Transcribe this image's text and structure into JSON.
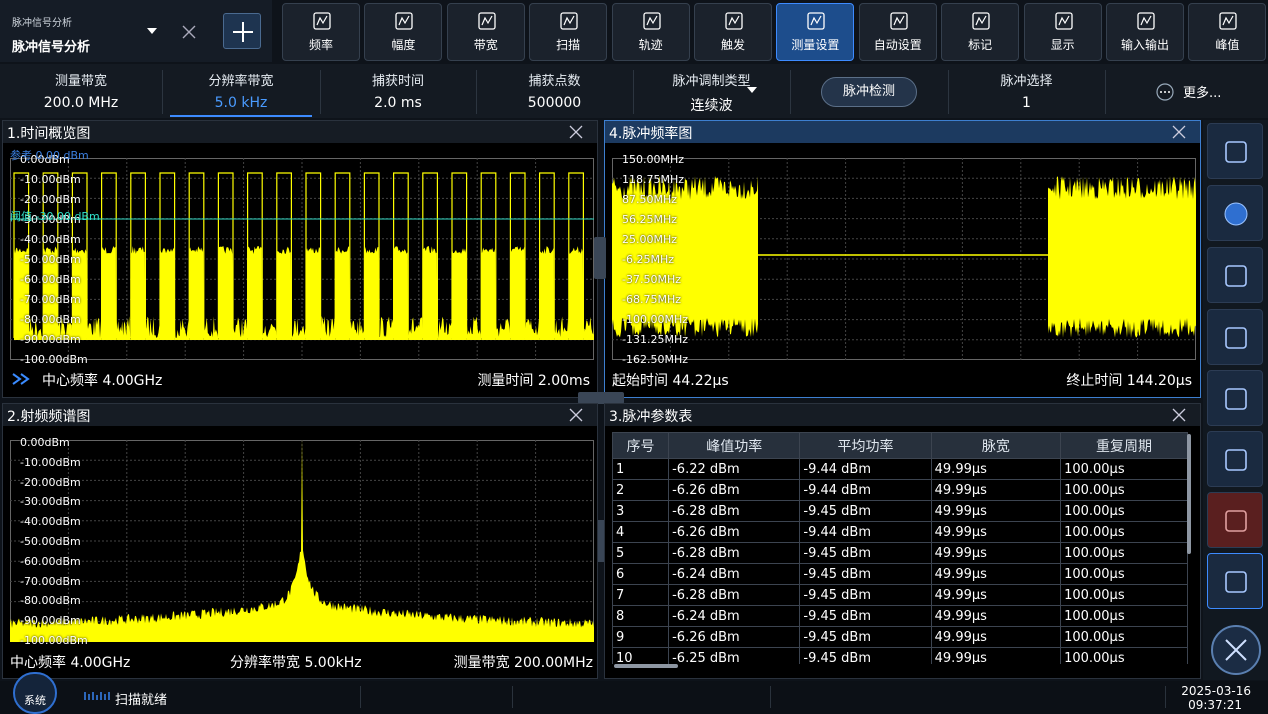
{
  "header": {
    "app_small": "脉冲信号分析",
    "app": "脉冲信号分析"
  },
  "toolbar": {
    "items": [
      "频率",
      "幅度",
      "带宽",
      "扫描",
      "轨迹",
      "触发",
      "测量设置",
      "自动设置",
      "标记",
      "显示",
      "输入输出",
      "峰值"
    ],
    "active_index": 6
  },
  "params": {
    "items": [
      {
        "label": "测量带宽",
        "value": "200.0 MHz"
      },
      {
        "label": "分辨率带宽",
        "value": "5.0 kHz"
      },
      {
        "label": "捕获时间",
        "value": "2.0 ms"
      },
      {
        "label": "捕获点数",
        "value": "500000"
      },
      {
        "label": "脉冲调制类型",
        "value": "连续波"
      },
      {
        "button": "脉冲检测"
      },
      {
        "label": "脉冲选择",
        "value": "1"
      },
      {
        "button": "更多..."
      }
    ],
    "active_index": 1
  },
  "panels": {
    "overview": {
      "title": "1.时间概览图",
      "ref_label": "参考 0.00 dBm",
      "threshold_label": "阈值 -30.00 dBm",
      "y_labels": [
        "0.00dBm",
        "-10.00dBm",
        "-20.00dBm",
        "-30.00dBm",
        "-40.00dBm",
        "-50.00dBm",
        "-60.00dBm",
        "-70.00dBm",
        "-80.00dBm",
        "-90.00dBm",
        "-100.00dBm"
      ],
      "footer_left": "中心频率 4.00GHz",
      "footer_right": "测量时间 2.00ms"
    },
    "frequency": {
      "title": "4.脉冲频率图",
      "y_labels": [
        "150.00MHz",
        "118.75MHz",
        "87.50MHz",
        "56.25MHz",
        "25.00MHz",
        "-6.25MHz",
        "-37.50MHz",
        "-68.75MHz",
        "-100.00MHz",
        "-131.25MHz",
        "-162.50MHz"
      ],
      "footer_left": "起始时间 44.22µs",
      "footer_right": "终止时间 144.20µs"
    },
    "spectrum": {
      "title": "2.射频频谱图",
      "y_labels": [
        "0.00dBm",
        "-10.00dBm",
        "-20.00dBm",
        "-30.00dBm",
        "-40.00dBm",
        "-50.00dBm",
        "-60.00dBm",
        "-70.00dBm",
        "-80.00dBm",
        "-90.00dBm",
        "-100.00dBm"
      ],
      "footer_left": "中心频率 4.00GHz",
      "footer_center": "分辨率带宽 5.00kHz",
      "footer_right": "测量带宽 200.00MHz"
    },
    "table": {
      "title": "3.脉冲参数表",
      "columns": [
        "序号",
        "峰值功率",
        "平均功率",
        "脉宽",
        "重复周期"
      ],
      "rows": [
        [
          "1",
          "-6.22 dBm",
          "-9.44 dBm",
          "49.99µs",
          "100.00µs"
        ],
        [
          "2",
          "-6.26 dBm",
          "-9.44 dBm",
          "49.99µs",
          "100.00µs"
        ],
        [
          "3",
          "-6.28 dBm",
          "-9.45 dBm",
          "49.99µs",
          "100.00µs"
        ],
        [
          "4",
          "-6.26 dBm",
          "-9.44 dBm",
          "49.99µs",
          "100.00µs"
        ],
        [
          "5",
          "-6.28 dBm",
          "-9.45 dBm",
          "49.99µs",
          "100.00µs"
        ],
        [
          "6",
          "-6.24 dBm",
          "-9.45 dBm",
          "49.99µs",
          "100.00µs"
        ],
        [
          "7",
          "-6.28 dBm",
          "-9.45 dBm",
          "49.99µs",
          "100.00µs"
        ],
        [
          "8",
          "-6.24 dBm",
          "-9.45 dBm",
          "49.99µs",
          "100.00µs"
        ],
        [
          "9",
          "-6.26 dBm",
          "-9.45 dBm",
          "49.99µs",
          "100.00µs"
        ],
        [
          "10",
          "-6.25 dBm",
          "-9.45 dBm",
          "49.99µs",
          "100.00µs"
        ]
      ]
    }
  },
  "status": {
    "system": "系统",
    "state": "扫描就绪",
    "date": "2025-03-16",
    "time": "09:37:21"
  }
}
